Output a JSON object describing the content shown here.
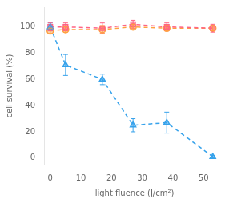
{
  "chart_data": {
    "type": "line",
    "xlabel": "light fluence (J/cm²)",
    "ylabel": "cell survival (%)",
    "x": [
      0,
      5,
      17,
      27,
      38,
      53
    ],
    "series": [
      {
        "values": [
          100,
          71,
          60,
          25,
          27,
          1
        ],
        "yerr": [
          3,
          8,
          4,
          5,
          8,
          1
        ],
        "marker": "triangle",
        "line_style": "dashed"
      },
      {
        "values": [
          100,
          100,
          99,
          102,
          100,
          99
        ],
        "yerr": [
          3,
          3,
          4,
          3,
          3,
          3
        ],
        "marker": "square",
        "line_style": "dashed"
      },
      {
        "values": [
          97,
          98,
          98,
          100,
          99,
          99
        ],
        "yerr": [
          2,
          2,
          3,
          2,
          2,
          2
        ],
        "marker": "circle",
        "line_style": "dashed"
      }
    ],
    "xlim": [
      -2,
      57
    ],
    "ylim": [
      -5,
      115
    ],
    "xticks": [
      0,
      10,
      20,
      30,
      40,
      50
    ],
    "yticks": [
      0,
      20,
      40,
      60,
      80,
      100
    ],
    "grid": false,
    "background_color": "#ffffff"
  }
}
